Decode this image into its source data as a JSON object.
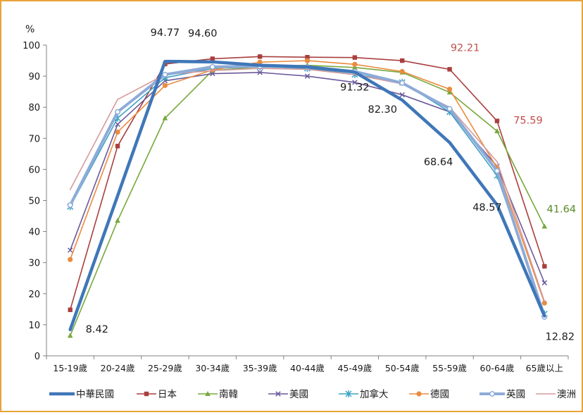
{
  "chart_data": {
    "type": "line",
    "unit_label": "%",
    "categories": [
      "15-19歲",
      "20-24歲",
      "25-29歲",
      "30-34歲",
      "35-39歲",
      "40-44歲",
      "45-49歲",
      "50-54歲",
      "55-59歲",
      "60-64歲",
      "65歲以上"
    ],
    "ylim": [
      0,
      100
    ],
    "yticks": [
      0,
      10,
      20,
      30,
      40,
      50,
      60,
      70,
      80,
      90,
      100
    ],
    "grid": false,
    "legend_position": "bottom",
    "colors": {
      "frame": "#e8a33a",
      "axis": "#808080",
      "text": "#1a1a1a",
      "highlight": "#c0504d"
    },
    "series": [
      {
        "name": "中華民國",
        "color": "#3f77b8",
        "width": 4.5,
        "marker": "none",
        "values": [
          8.42,
          51.5,
          94.77,
          94.6,
          93.5,
          93.0,
          91.32,
          82.3,
          68.64,
          48.57,
          12.82
        ]
      },
      {
        "name": "日本",
        "color": "#a93f3f",
        "width": 1.6,
        "marker": "square",
        "values": [
          14.8,
          67.5,
          93.9,
          95.6,
          96.3,
          96.1,
          96.0,
          95.0,
          92.21,
          75.59,
          28.8
        ]
      },
      {
        "name": "南韓",
        "color": "#77a83c",
        "width": 1.6,
        "marker": "triangle",
        "values": [
          6.5,
          43.5,
          76.5,
          91.8,
          93.0,
          93.5,
          92.8,
          91.2,
          84.8,
          72.3,
          41.64
        ]
      },
      {
        "name": "美國",
        "color": "#6c5a9c",
        "width": 1.6,
        "marker": "cross",
        "values": [
          34.0,
          74.5,
          88.5,
          90.8,
          91.2,
          90.0,
          88.0,
          84.0,
          78.5,
          61.0,
          23.5
        ]
      },
      {
        "name": "加拿大",
        "color": "#3fa3c4",
        "width": 1.6,
        "marker": "asterisk",
        "values": [
          48.0,
          76.5,
          89.5,
          92.5,
          93.0,
          92.5,
          90.5,
          88.0,
          78.5,
          58.0,
          13.5
        ]
      },
      {
        "name": "德國",
        "color": "#ea8b3f",
        "width": 1.6,
        "marker": "circle",
        "values": [
          31.0,
          72.0,
          87.0,
          92.0,
          94.5,
          95.0,
          93.8,
          91.5,
          85.8,
          60.5,
          17.0
        ]
      },
      {
        "name": "英國",
        "color": "#8eabd8",
        "width": 4.0,
        "marker": "circle-small",
        "values": [
          48.5,
          78.5,
          90.5,
          93.0,
          93.2,
          93.0,
          91.5,
          87.8,
          79.5,
          59.5,
          12.5
        ]
      },
      {
        "name": "澳洲",
        "color": "#d59a9c",
        "width": 1.6,
        "marker": "none",
        "values": [
          53.5,
          82.5,
          90.5,
          91.8,
          92.5,
          92.2,
          90.5,
          87.5,
          80.0,
          62.5,
          17.5
        ]
      }
    ],
    "annotations": [
      {
        "text": "8.42",
        "series": 0,
        "index": 0,
        "color": "#1a1a1a"
      },
      {
        "text": "94.77",
        "series": 0,
        "index": 2,
        "color": "#1a1a1a"
      },
      {
        "text": "94.60",
        "series": 0,
        "index": 3,
        "color": "#1a1a1a"
      },
      {
        "text": "91.32",
        "series": 0,
        "index": 6,
        "color": "#1a1a1a"
      },
      {
        "text": "82.30",
        "series": 0,
        "index": 7,
        "color": "#1a1a1a"
      },
      {
        "text": "68.64",
        "series": 0,
        "index": 8,
        "color": "#1a1a1a"
      },
      {
        "text": "48.57",
        "series": 0,
        "index": 9,
        "color": "#1a1a1a"
      },
      {
        "text": "12.82",
        "series": 0,
        "index": 10,
        "color": "#1a1a1a"
      },
      {
        "text": "92.21",
        "series": 1,
        "index": 8,
        "color": "#c0504d"
      },
      {
        "text": "75.59",
        "series": 1,
        "index": 9,
        "color": "#c0504d"
      },
      {
        "text": "41.64",
        "series": 2,
        "index": 10,
        "color": "#5a8a2a"
      }
    ]
  }
}
